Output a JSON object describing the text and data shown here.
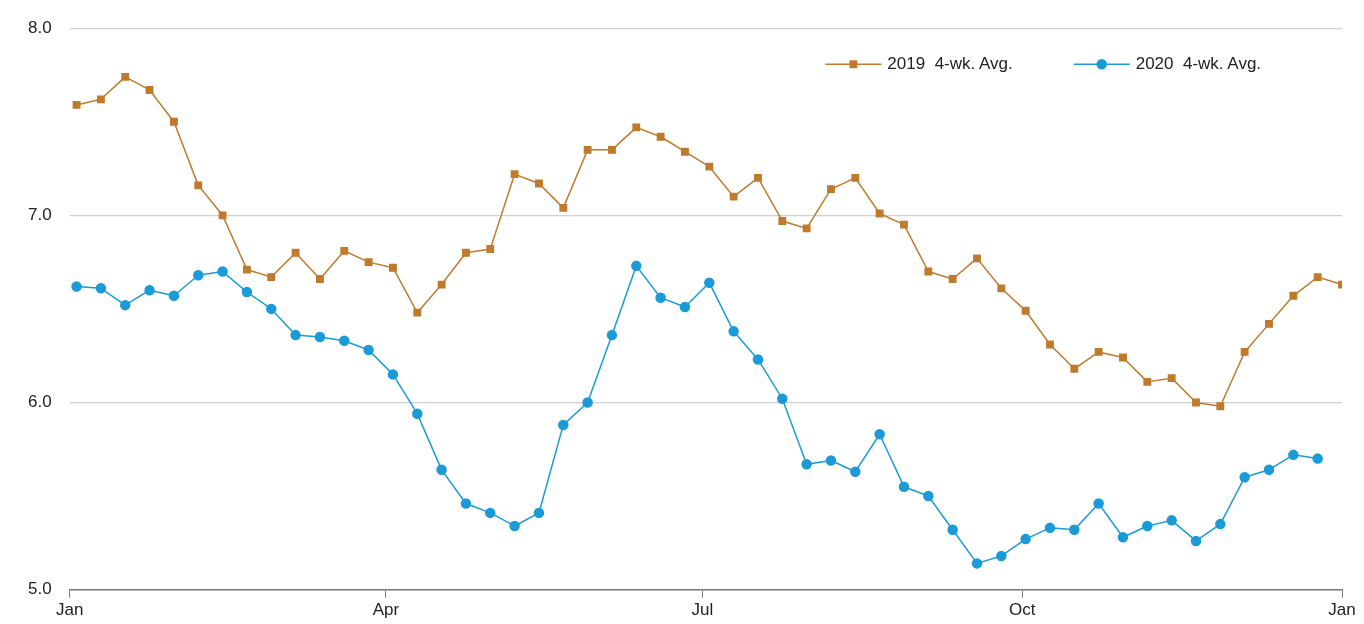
{
  "chart_data": {
    "type": "line",
    "x": [
      "2020-01-03",
      "2020-01-10",
      "2020-01-17",
      "2020-01-24",
      "2020-01-31",
      "2020-02-07",
      "2020-02-14",
      "2020-02-21",
      "2020-02-28",
      "2020-03-06",
      "2020-03-13",
      "2020-03-20",
      "2020-03-27",
      "2020-04-03",
      "2020-04-10",
      "2020-04-17",
      "2020-04-24",
      "2020-05-01",
      "2020-05-08",
      "2020-05-15",
      "2020-05-22",
      "2020-05-29",
      "2020-06-05",
      "2020-06-12",
      "2020-06-19",
      "2020-06-26",
      "2020-07-03",
      "2020-07-10",
      "2020-07-17",
      "2020-07-24",
      "2020-07-31",
      "2020-08-07",
      "2020-08-14",
      "2020-08-21",
      "2020-08-28",
      "2020-09-04",
      "2020-09-11",
      "2020-09-18",
      "2020-09-25",
      "2020-10-02",
      "2020-10-09",
      "2020-10-16",
      "2020-10-23",
      "2020-10-30",
      "2020-11-06",
      "2020-11-13",
      "2020-11-20",
      "2020-11-27",
      "2020-12-04",
      "2020-12-11",
      "2020-12-18",
      "2020-12-25",
      "2021-01-01"
    ],
    "series": [
      {
        "name": "2019  4-wk. Avg.",
        "color": "#c07a2c",
        "marker": "square",
        "values": [
          7.59,
          7.62,
          7.74,
          7.67,
          7.5,
          7.16,
          7.0,
          6.71,
          6.67,
          6.8,
          6.66,
          6.81,
          6.75,
          6.72,
          6.48,
          6.63,
          6.8,
          6.82,
          7.22,
          7.17,
          7.04,
          7.35,
          7.35,
          7.47,
          7.42,
          7.34,
          7.26,
          7.1,
          7.2,
          6.97,
          6.93,
          7.14,
          7.2,
          7.01,
          6.95,
          6.7,
          6.66,
          6.77,
          6.61,
          6.49,
          6.31,
          6.18,
          6.27,
          6.24,
          6.11,
          6.13,
          6.0,
          5.98,
          6.27,
          6.42,
          6.57,
          6.67,
          6.63
        ]
      },
      {
        "name": "2020  4-wk. Avg.",
        "color": "#1a9bd7",
        "marker": "circle",
        "values": [
          6.62,
          6.61,
          6.52,
          6.6,
          6.57,
          6.68,
          6.7,
          6.59,
          6.5,
          6.36,
          6.35,
          6.33,
          6.28,
          6.15,
          5.94,
          5.64,
          5.46,
          5.41,
          5.34,
          5.41,
          5.88,
          6.0,
          6.36,
          6.73,
          6.56,
          6.51,
          6.64,
          6.38,
          6.23,
          6.02,
          5.67,
          5.69,
          5.63,
          5.83,
          5.55,
          5.5,
          5.32,
          5.14,
          5.18,
          5.27,
          5.33,
          5.32,
          5.46,
          5.28,
          5.34,
          5.37,
          5.26,
          5.35,
          5.6,
          5.64,
          5.72,
          5.7,
          null
        ]
      }
    ],
    "xlim": [
      "2020-01-01",
      "2021-01-01"
    ],
    "xticks": [
      {
        "value": "2020-01-01",
        "label": "Jan"
      },
      {
        "value": "2020-04-01",
        "label": "Apr"
      },
      {
        "value": "2020-07-01",
        "label": "Jul"
      },
      {
        "value": "2020-10-01",
        "label": "Oct"
      },
      {
        "value": "2021-01-01",
        "label": "Jan"
      }
    ],
    "ylim": [
      5.0,
      8.0
    ],
    "yticks": [
      {
        "value": 5,
        "label": "5.0"
      },
      {
        "value": 6,
        "label": "6.0"
      },
      {
        "value": 7,
        "label": "7.0"
      },
      {
        "value": 8,
        "label": "8.0"
      }
    ],
    "grid": "y",
    "legend": "top right",
    "line_style": "solid"
  }
}
